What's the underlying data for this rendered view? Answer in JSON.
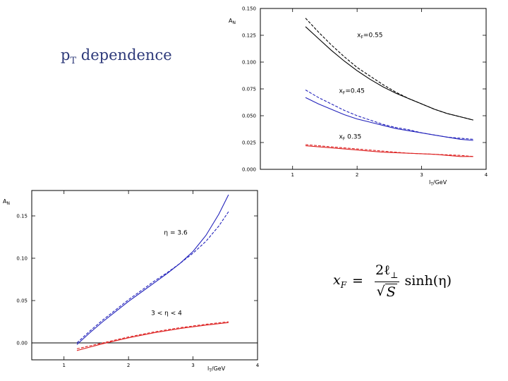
{
  "slide": {
    "title_main": "p",
    "title_sub": "T",
    "title_rest": " dependence"
  },
  "formula": {
    "lhs": "x",
    "lhs_sub": "F",
    "eq": "=",
    "numerator": "2ℓ",
    "numerator_sub": "⊥",
    "denominator": "S",
    "func": "sinh(η)"
  },
  "chart_data": [
    {
      "type": "line",
      "title": "",
      "xlabel": "l",
      "xlabel_sub": "T",
      "xlabel_unit": "/GeV",
      "ylabel": "A",
      "ylabel_sub": "N",
      "xlim": [
        0.5,
        4
      ],
      "ylim": [
        0,
        0.15
      ],
      "xticks": [
        "1",
        "2",
        "3",
        "4"
      ],
      "yticks": [
        "0.000",
        "0.025",
        "0.050",
        "0.075",
        "0.100",
        "0.125",
        "0.150"
      ],
      "grid": false,
      "annotations": [
        {
          "text": "x",
          "sub": "F",
          "rest": "=0.55",
          "x": 2.0,
          "y": 0.1235
        },
        {
          "text": "x",
          "sub": "F",
          "rest": "=0.45",
          "x": 1.72,
          "y": 0.0715
        },
        {
          "text": "x",
          "sub": "F",
          "rest": " 0.35",
          "x": 1.72,
          "y": 0.0285
        }
      ],
      "series": [
        {
          "color": "#000000",
          "dash": false,
          "x": [
            1.2,
            1.4,
            1.6,
            1.8,
            2.0,
            2.2,
            2.4,
            2.6,
            2.8,
            3.0,
            3.2,
            3.4,
            3.6,
            3.8
          ],
          "y": [
            0.133,
            0.122,
            0.111,
            0.101,
            0.092,
            0.084,
            0.077,
            0.071,
            0.066,
            0.061,
            0.056,
            0.052,
            0.049,
            0.046
          ]
        },
        {
          "color": "#000000",
          "dash": true,
          "x": [
            1.2,
            1.4,
            1.6,
            1.8,
            2.0,
            2.2,
            2.4,
            2.6,
            2.8,
            3.0,
            3.2,
            3.4,
            3.6,
            3.8
          ],
          "y": [
            0.141,
            0.128,
            0.116,
            0.105,
            0.095,
            0.087,
            0.079,
            0.072,
            0.066,
            0.061,
            0.056,
            0.052,
            0.049,
            0.046
          ]
        },
        {
          "color": "#2222bb",
          "dash": false,
          "x": [
            1.2,
            1.4,
            1.6,
            1.8,
            2.0,
            2.2,
            2.4,
            2.6,
            2.8,
            3.0,
            3.2,
            3.4,
            3.6,
            3.8
          ],
          "y": [
            0.067,
            0.061,
            0.056,
            0.051,
            0.047,
            0.044,
            0.041,
            0.038,
            0.036,
            0.034,
            0.032,
            0.03,
            0.028,
            0.027
          ]
        },
        {
          "color": "#2222bb",
          "dash": true,
          "x": [
            1.2,
            1.4,
            1.6,
            1.8,
            2.0,
            2.2,
            2.4,
            2.6,
            2.8,
            3.0,
            3.2,
            3.4,
            3.6,
            3.8
          ],
          "y": [
            0.074,
            0.067,
            0.061,
            0.055,
            0.05,
            0.046,
            0.042,
            0.039,
            0.037,
            0.034,
            0.032,
            0.03,
            0.029,
            0.028
          ]
        },
        {
          "color": "#dd2222",
          "dash": false,
          "x": [
            1.2,
            1.6,
            2.0,
            2.4,
            2.8,
            3.2,
            3.6,
            3.8
          ],
          "y": [
            0.022,
            0.02,
            0.018,
            0.016,
            0.015,
            0.014,
            0.012,
            0.012
          ]
        },
        {
          "color": "#dd2222",
          "dash": true,
          "x": [
            1.2,
            1.6,
            2.0,
            2.4,
            2.8,
            3.2,
            3.6,
            3.8
          ],
          "y": [
            0.023,
            0.021,
            0.019,
            0.017,
            0.015,
            0.014,
            0.013,
            0.012
          ]
        }
      ]
    },
    {
      "type": "line",
      "title": "",
      "xlabel": "l",
      "xlabel_sub": "T",
      "xlabel_unit": "/GeV",
      "ylabel": "A",
      "ylabel_sub": "N",
      "xlim": [
        0.5,
        4
      ],
      "ylim": [
        -0.02,
        0.18
      ],
      "xticks": [
        "1",
        "2",
        "3",
        "4"
      ],
      "yticks": [
        "0.00",
        "0.05",
        "0.10",
        "0.15"
      ],
      "zero_line": true,
      "grid": false,
      "annotations": [
        {
          "text": "η = 3.6",
          "x": 2.55,
          "y": 0.128
        },
        {
          "text": "3 < η < 4",
          "x": 2.35,
          "y": 0.033
        }
      ],
      "series": [
        {
          "color": "#2222bb",
          "dash": false,
          "x": [
            1.2,
            1.4,
            1.6,
            1.8,
            2.0,
            2.2,
            2.4,
            2.6,
            2.8,
            3.0,
            3.2,
            3.4,
            3.55
          ],
          "y": [
            -0.002,
            0.012,
            0.025,
            0.037,
            0.049,
            0.06,
            0.071,
            0.082,
            0.094,
            0.108,
            0.127,
            0.152,
            0.175
          ]
        },
        {
          "color": "#2222bb",
          "dash": true,
          "x": [
            1.2,
            1.4,
            1.6,
            1.8,
            2.0,
            2.2,
            2.4,
            2.6,
            2.8,
            3.0,
            3.2,
            3.4,
            3.55
          ],
          "y": [
            0.0,
            0.014,
            0.027,
            0.039,
            0.051,
            0.062,
            0.073,
            0.083,
            0.094,
            0.106,
            0.12,
            0.138,
            0.155
          ]
        },
        {
          "color": "#dd2222",
          "dash": false,
          "x": [
            1.2,
            1.6,
            2.0,
            2.4,
            2.8,
            3.2,
            3.55
          ],
          "y": [
            -0.009,
            -0.001,
            0.006,
            0.012,
            0.017,
            0.021,
            0.024
          ]
        },
        {
          "color": "#dd2222",
          "dash": true,
          "x": [
            1.2,
            1.6,
            2.0,
            2.4,
            2.8,
            3.2,
            3.55
          ],
          "y": [
            -0.007,
            0.0,
            0.007,
            0.013,
            0.018,
            0.022,
            0.025
          ]
        }
      ]
    }
  ]
}
